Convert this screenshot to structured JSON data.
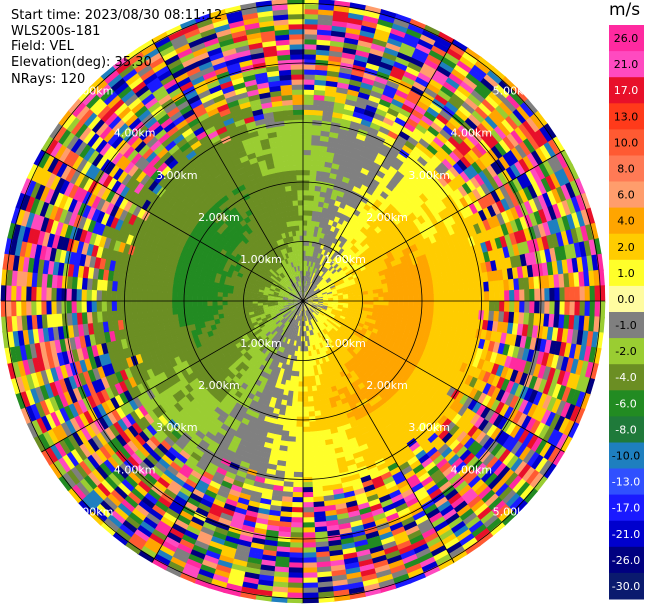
{
  "header": {
    "start_time": "Start time: 2023/08/30 08:11:12",
    "instrument": "WLS200s-181",
    "field": "Field: VEL",
    "elevation": "Elevation(deg): 35.30",
    "nrays": "NRays: 120"
  },
  "colorbar": {
    "unit": "m/s",
    "ticks": [
      "26.0",
      "21.0",
      "17.0",
      "13.0",
      "10.0",
      "8.0",
      "6.0",
      "4.0",
      "2.0",
      "1.0",
      "0.0",
      "-1.0",
      "-2.0",
      "-4.0",
      "-6.0",
      "-8.0",
      "-10.0",
      "-13.0",
      "-17.0",
      "-21.0",
      "-26.0",
      "-30.0"
    ],
    "colors": [
      "#ff2aa0",
      "#ff4ac0",
      "#e8102a",
      "#ff3a1a",
      "#ff5a32",
      "#ff7a55",
      "#ff9d6c",
      "#ffa500",
      "#ffcc00",
      "#ffff2a",
      "#fffca0",
      "#7f7f7f",
      "#9acd32",
      "#6b8e23",
      "#228b22",
      "#1f7a3a",
      "#1e7fbf",
      "#3050ff",
      "#1a1aff",
      "#0000cd",
      "#000080",
      "#0a1a6e"
    ]
  },
  "chart_data": {
    "type": "polar_ppi",
    "field": "VEL",
    "units": "m/s",
    "range_rings_km": [
      1.0,
      2.0,
      3.0,
      4.0,
      5.0
    ],
    "ring_labels": [
      "1.00km",
      "2.00km",
      "3.00km",
      "4.00km",
      "5.00km"
    ],
    "nrays": 120,
    "azimuth_spokes_deg": [
      0,
      30,
      60,
      90,
      120,
      150,
      180,
      210,
      240,
      270,
      300,
      330
    ],
    "clean_radius_km": 3.0,
    "value_range": [
      -30,
      26
    ],
    "approx_pattern": {
      "description_free": true,
      "positive_sector_deg": [
        20,
        200
      ],
      "negative_sector_deg": [
        200,
        380
      ],
      "peak_positive": 4.0,
      "peak_negative": -6.0
    }
  }
}
